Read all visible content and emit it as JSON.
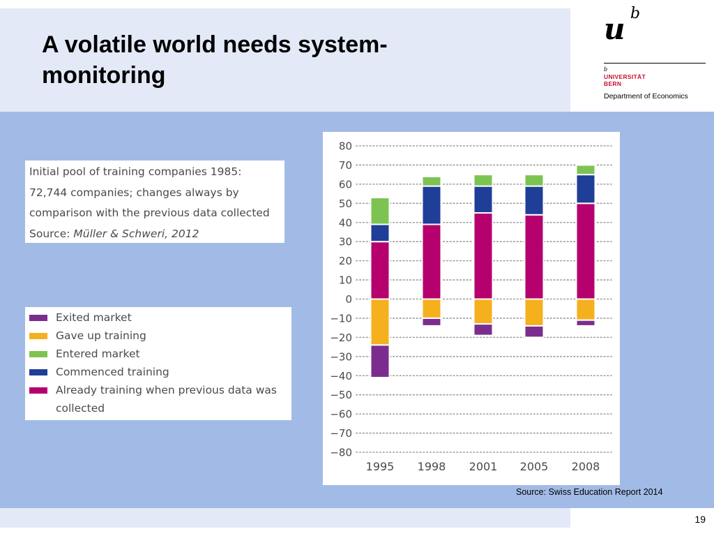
{
  "slide": {
    "title": "A volatile world needs system-monitoring",
    "title_line1": "A volatile world needs system-",
    "title_line2": "monitoring",
    "page_number": "19",
    "source": "Source: Swiss Education Report 2014"
  },
  "logo": {
    "mark_u": "u",
    "mark_b": "b",
    "small_b": "b",
    "university": "UNIVERSITÄT",
    "city": "BERN",
    "department": "Department of Economics",
    "accent_color": "#c8102e"
  },
  "note": {
    "line1": "Initial pool of training companies 1985:",
    "line2": "72,744 companies; changes always by",
    "line3": "comparison with the previous data collected",
    "line4_prefix": "Source: ",
    "line4_italic": "Müller & Schweri, 2012"
  },
  "legend": {
    "items": [
      {
        "label": "Exited market",
        "color": "#7b2d8e"
      },
      {
        "label": "Gave up training",
        "color": "#f5b01e"
      },
      {
        "label": "Entered market",
        "color": "#7dc352"
      },
      {
        "label": "Commenced training",
        "color": "#1f3e97"
      },
      {
        "label": "Already training when previous data was",
        "label2": "collected",
        "color": "#b5006e"
      }
    ]
  },
  "chart_data": {
    "type": "bar",
    "stacked": true,
    "categories": [
      "1995",
      "1998",
      "2001",
      "2005",
      "2008"
    ],
    "series": [
      {
        "name": "Already training when previous data was collected",
        "color": "#b5006e",
        "values": [
          30,
          39,
          45,
          44,
          50
        ]
      },
      {
        "name": "Commenced training",
        "color": "#1f3e97",
        "values": [
          9,
          20,
          14,
          15,
          15
        ]
      },
      {
        "name": "Entered market",
        "color": "#7dc352",
        "values": [
          14,
          5,
          6,
          6,
          5
        ]
      },
      {
        "name": "Gave up training",
        "color": "#f5b01e",
        "values": [
          -24,
          -10,
          -13,
          -14,
          -11
        ]
      },
      {
        "name": "Exited market",
        "color": "#7b2d8e",
        "values": [
          -17,
          -4,
          -6,
          -6,
          -3
        ]
      }
    ],
    "ylim": [
      -80,
      80
    ],
    "yticks": [
      "80",
      "70",
      "60",
      "50",
      "40",
      "30",
      "20",
      "10",
      "0",
      "−10",
      "−20",
      "−30",
      "−40",
      "−50",
      "−60",
      "−70",
      "−80"
    ],
    "grid": true,
    "legend": "left"
  }
}
